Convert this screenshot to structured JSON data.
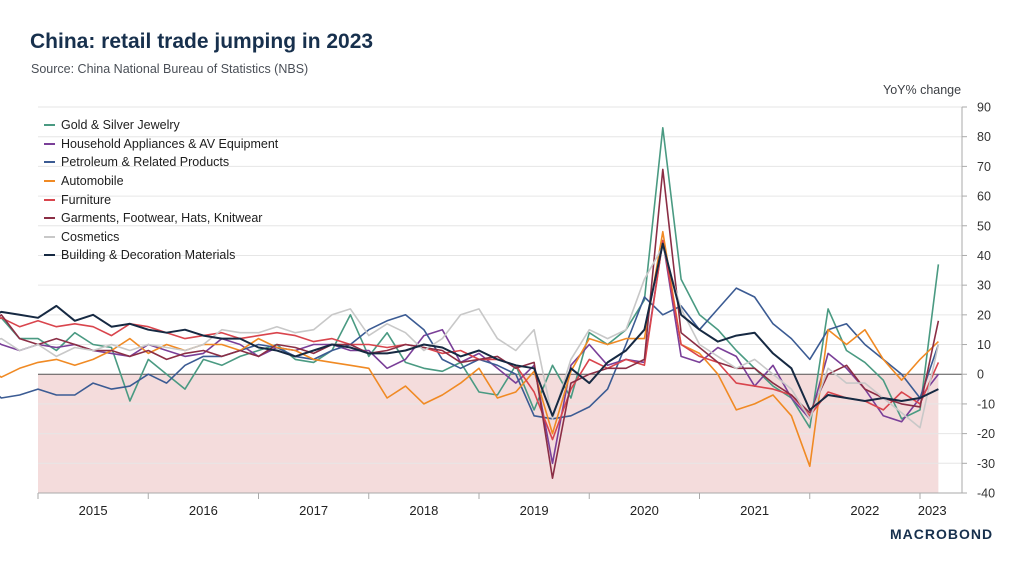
{
  "title": "China: retail trade jumping in 2023",
  "subtitle": "Source: China National Bureau of Statistics (NBS)",
  "brand": "MACROBOND",
  "colors": {
    "negative_region": "#f4dcdc",
    "grid": "#e6e6e6",
    "zero": "#555555",
    "axis": "#aaaaaa"
  },
  "chart_data": {
    "type": "line",
    "title": "China: retail trade jumping in 2023",
    "ylabel": "YoY% change",
    "ylim": [
      -40,
      90
    ],
    "yticks": [
      90,
      80,
      70,
      60,
      50,
      40,
      30,
      20,
      10,
      0,
      -10,
      -20,
      -30,
      -40
    ],
    "x_range": [
      "2014-07",
      "2023-03"
    ],
    "x_ticks": [
      "2015",
      "2016",
      "2017",
      "2018",
      "2019",
      "2020",
      "2021",
      "2022",
      "2023"
    ],
    "grid": "horizontal",
    "legend_position": "top-left",
    "shaded_region": "below zero",
    "x_dates": [
      "2014-07",
      "2014-09",
      "2014-11",
      "2015-01",
      "2015-03",
      "2015-05",
      "2015-07",
      "2015-09",
      "2015-11",
      "2016-01",
      "2016-03",
      "2016-05",
      "2016-07",
      "2016-09",
      "2016-11",
      "2017-01",
      "2017-03",
      "2017-05",
      "2017-07",
      "2017-09",
      "2017-11",
      "2018-01",
      "2018-03",
      "2018-05",
      "2018-07",
      "2018-09",
      "2018-11",
      "2019-01",
      "2019-03",
      "2019-05",
      "2019-07",
      "2019-09",
      "2019-11",
      "2020-01",
      "2020-03",
      "2020-05",
      "2020-07",
      "2020-09",
      "2020-11",
      "2021-01",
      "2021-03",
      "2021-05",
      "2021-07",
      "2021-09",
      "2021-11",
      "2022-01",
      "2022-03",
      "2022-05",
      "2022-07",
      "2022-09",
      "2022-11",
      "2023-01",
      "2023-03"
    ],
    "series": [
      {
        "name": "Gold & Silver Jewelry",
        "color": "#4a9a82",
        "values": [
          16,
          19,
          12,
          12,
          8,
          14,
          10,
          9,
          -9,
          5,
          0,
          -5,
          5,
          3,
          6,
          8,
          10,
          5,
          4,
          8,
          20,
          6,
          14,
          4,
          2,
          1,
          4,
          -6,
          -7,
          3,
          -12,
          3,
          -8,
          14,
          10,
          15,
          25,
          83,
          32,
          20,
          15,
          8,
          2,
          -4,
          -8,
          -18,
          22,
          8,
          4,
          -2,
          -15,
          -12,
          37
        ]
      },
      {
        "name": "Household Appliances & AV Equipment",
        "color": "#7a3f98",
        "values": [
          14,
          10,
          8,
          10,
          9,
          10,
          8,
          7,
          6,
          10,
          8,
          6,
          7,
          12,
          10,
          6,
          9,
          8,
          10,
          10,
          8,
          8,
          2,
          5,
          13,
          15,
          4,
          7,
          2,
          -3,
          3,
          -30,
          3,
          10,
          3,
          5,
          4,
          45,
          6,
          4,
          9,
          6,
          -4,
          3,
          -8,
          -15,
          7,
          2,
          -5,
          -14,
          -16,
          -8,
          0
        ]
      },
      {
        "name": "Petroleum & Related Products",
        "color": "#3b5b93",
        "values": [
          -3,
          -8,
          -7,
          -5,
          -7,
          -7,
          -3,
          -5,
          -4,
          0,
          -3,
          3,
          6,
          6,
          8,
          10,
          9,
          6,
          5,
          8,
          10,
          15,
          18,
          20,
          15,
          5,
          2,
          5,
          3,
          0,
          -14,
          -15,
          -14,
          -11,
          -5,
          10,
          26,
          20,
          23,
          15,
          22,
          29,
          26,
          17,
          12,
          5,
          15,
          17,
          10,
          5,
          0,
          -8,
          10
        ]
      },
      {
        "name": "Automobile",
        "color": "#f08a24",
        "values": [
          3,
          -1,
          2,
          4,
          5,
          3,
          5,
          8,
          12,
          7,
          10,
          8,
          10,
          10,
          8,
          12,
          9,
          8,
          5,
          4,
          3,
          2,
          -8,
          -4,
          -10,
          -7,
          -3,
          2,
          -8,
          -6,
          1,
          -20,
          1,
          12,
          10,
          12,
          12,
          48,
          10,
          7,
          0,
          -12,
          -10,
          -7,
          -14,
          -31,
          15,
          10,
          15,
          5,
          -2,
          5,
          11
        ]
      },
      {
        "name": "Furniture",
        "color": "#d9454d",
        "values": [
          17,
          19,
          16,
          18,
          16,
          17,
          16,
          13,
          17,
          16,
          14,
          12,
          13,
          14,
          12,
          13,
          14,
          13,
          11,
          12,
          10,
          10,
          9,
          10,
          9,
          7,
          8,
          5,
          5,
          3,
          -6,
          -22,
          -5,
          5,
          2,
          5,
          3,
          45,
          10,
          6,
          4,
          -3,
          -4,
          -5,
          -7,
          -14,
          -6,
          -8,
          -9,
          -12,
          -6,
          -10,
          4
        ]
      },
      {
        "name": "Garments, Footwear, Hats, Knitwear",
        "color": "#8b2e45",
        "values": [
          14,
          20,
          12,
          10,
          12,
          10,
          8,
          8,
          6,
          8,
          5,
          7,
          8,
          6,
          8,
          6,
          10,
          9,
          7,
          10,
          10,
          7,
          8,
          10,
          9,
          8,
          4,
          5,
          6,
          2,
          4,
          -35,
          -3,
          0,
          2,
          2,
          5,
          69,
          14,
          9,
          4,
          2,
          2,
          -3,
          -7,
          -13,
          0,
          3,
          -5,
          -8,
          -10,
          -11,
          18
        ]
      },
      {
        "name": "Cosmetics",
        "color": "#c8c8c8",
        "values": [
          10,
          12,
          8,
          10,
          6,
          9,
          8,
          10,
          8,
          10,
          9,
          8,
          10,
          15,
          14,
          14,
          16,
          14,
          15,
          20,
          22,
          13,
          17,
          14,
          8,
          12,
          20,
          22,
          12,
          8,
          15,
          -15,
          5,
          15,
          12,
          15,
          32,
          43,
          22,
          10,
          6,
          2,
          5,
          0,
          -5,
          -15,
          2,
          -3,
          -3,
          -8,
          -13,
          -18,
          10
        ]
      },
      {
        "name": "Building & Decoration Materials",
        "color": "#162942",
        "values": [
          18,
          21,
          20,
          19,
          23,
          18,
          20,
          16,
          17,
          15,
          14,
          15,
          13,
          12,
          12,
          9,
          8,
          6,
          8,
          10,
          9,
          7,
          7,
          8,
          10,
          9,
          6,
          8,
          5,
          3,
          2,
          -14,
          2,
          -3,
          4,
          8,
          15,
          44,
          20,
          15,
          11,
          13,
          14,
          7,
          2,
          -12,
          -7,
          -8,
          -9,
          -8,
          -9,
          -8,
          -5
        ]
      }
    ]
  }
}
